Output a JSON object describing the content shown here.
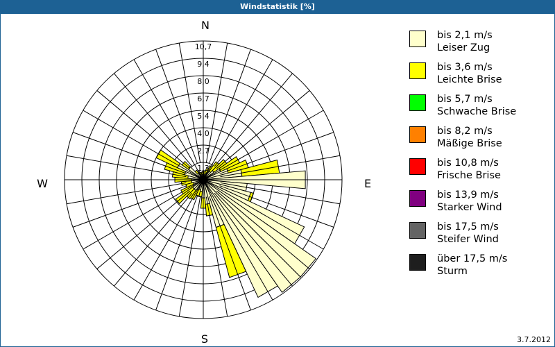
{
  "header": {
    "title": "Windstatistik [%]"
  },
  "footer": {
    "date": "3.7.2012"
  },
  "compass": {
    "n": "N",
    "e": "E",
    "s": "S",
    "w": "W"
  },
  "legend": [
    {
      "line1": "bis 2,1 m/s",
      "line2": "Leiser Zug",
      "color": "#ffffcc"
    },
    {
      "line1": "bis 3,6 m/s",
      "line2": "Leichte Brise",
      "color": "#ffff00"
    },
    {
      "line1": "bis 5,7 m/s",
      "line2": "Schwache Brise",
      "color": "#00ff00"
    },
    {
      "line1": "bis 8,2 m/s",
      "line2": "Mäßige Brise",
      "color": "#ff8000"
    },
    {
      "line1": "bis 10,8 m/s",
      "line2": "Frische Brise",
      "color": "#ff0000"
    },
    {
      "line1": "bis 13,9 m/s",
      "line2": "Starker Wind",
      "color": "#800080"
    },
    {
      "line1": "bis 17,5 m/s",
      "line2": "Steifer Wind",
      "color": "#646464"
    },
    {
      "line1": "über 17,5 m/s",
      "line2": "Sturm",
      "color": "#1e1e1e"
    }
  ],
  "chart_data": {
    "type": "windrose",
    "title": "Windstatistik [%]",
    "rings": [
      "1,3",
      "2,7",
      "4,0",
      "5,4",
      "6,7",
      "8,0",
      "9,4",
      "10,7"
    ],
    "rmax": 10.7,
    "sector_width_deg": 10,
    "series_names": [
      "bis 2,1 m/s",
      "bis 3,6 m/s"
    ],
    "directions_deg": [
      0,
      10,
      20,
      30,
      40,
      50,
      60,
      70,
      80,
      90,
      100,
      110,
      120,
      130,
      140,
      150,
      160,
      170,
      180,
      190,
      200,
      210,
      220,
      230,
      240,
      250,
      260,
      270,
      280,
      290,
      300,
      310,
      320,
      330,
      340,
      350
    ],
    "series": [
      {
        "name": "bis 2,1 m/s",
        "color": "#ffffcc",
        "values": [
          0.5,
          0.4,
          0.5,
          0.6,
          0.8,
          1.0,
          1.5,
          2.0,
          3.0,
          7.9,
          3.4,
          3.8,
          8.6,
          10.6,
          10.6,
          10.0,
          3.8,
          1.9,
          1.4,
          0.9,
          0.8,
          0.9,
          1.0,
          1.0,
          0.9,
          0.8,
          0.9,
          0.9,
          1.2,
          1.5,
          2.2,
          1.4,
          0.6,
          0.5,
          0.4,
          0.4
        ]
      },
      {
        "name": "bis 3,6 m/s",
        "color": "#ffff00",
        "values": [
          0.2,
          0.3,
          0.4,
          0.6,
          0.9,
          1.2,
          1.6,
          1.6,
          2.9,
          0.0,
          0.0,
          0.2,
          0.0,
          0.0,
          0.0,
          0.0,
          4.0,
          0.9,
          0.8,
          0.4,
          0.5,
          0.8,
          0.8,
          1.6,
          1.0,
          0.6,
          0.8,
          1.3,
          1.2,
          1.6,
          1.8,
          0.6,
          0.3,
          0.2,
          0.2,
          0.2
        ]
      }
    ]
  }
}
